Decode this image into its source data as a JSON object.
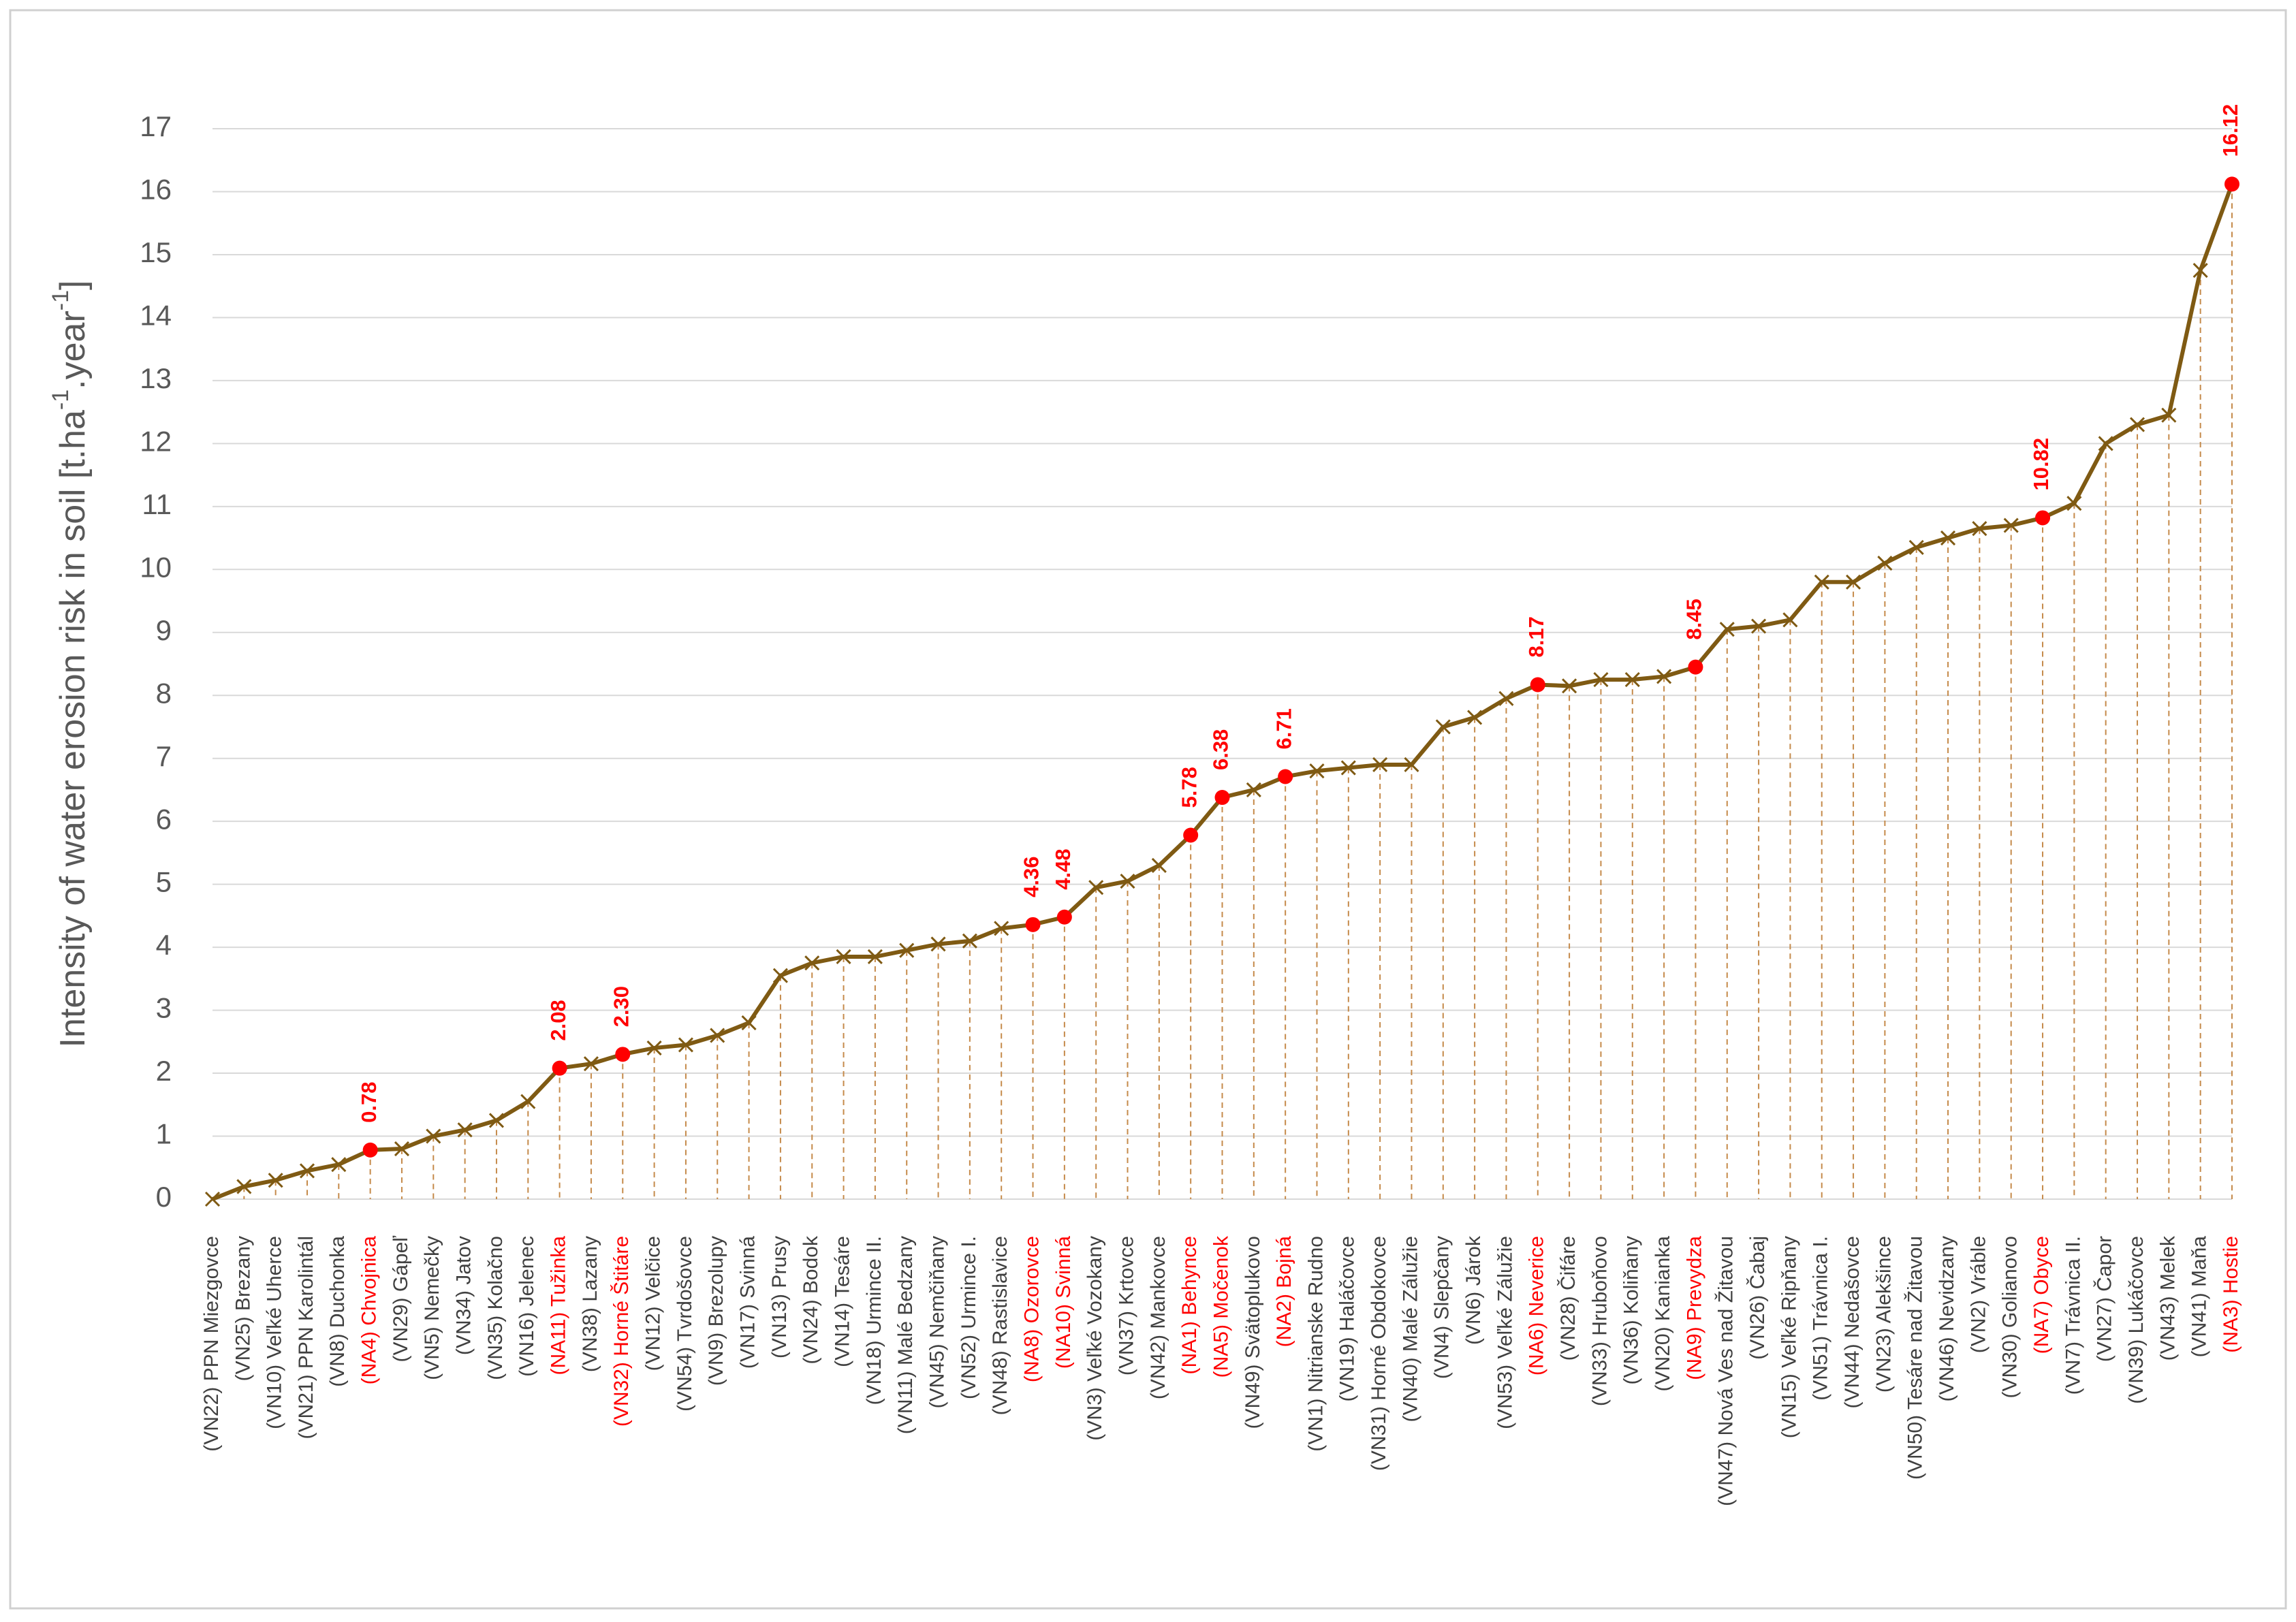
{
  "chart_data": {
    "type": "line",
    "ylabel_parts": [
      "Intensity of water erosion risk in soil [t.ha",
      "-1",
      ".year",
      "-1",
      "]"
    ],
    "categories": [
      "(VN22) PPN Miezgovce",
      "(VN25) Brezany",
      "(VN10) Veľké Uherce",
      "(VN21) PPN Karolintál",
      "(VN8) Duchonka",
      "(NA4) Chvojnica",
      "(VN29) Gápeľ",
      "(VN5) Nemečky",
      "(VN34) Jatov",
      "(VN35) Kolačno",
      "(VN16) Jelenec",
      "(NA11) Tužinka",
      "(VN38) Lazany",
      "(VN32) Horné Štitáre",
      "(VN12) Velčice",
      "(VN54) Tvrdošovce",
      "(VN9) Brezolupy",
      "(VN17) Svinná",
      "(VN13) Prusy",
      "(VN24) Bodok",
      "(VN14) Tesáre",
      "(VN18) Urmince II.",
      "(VN11) Malé Bedzany",
      "(VN45) Nemčiňany",
      "(VN52) Urmince I.",
      "(VN48) Rastislavice",
      "(NA8) Ozorovce",
      "(NA10) Svinná",
      "(VN3) Veľké Vozokany",
      "(VN37) Krtovce",
      "(VN42) Mankovce",
      "(NA1) Behynce",
      "(NA5) Močenok",
      "(VN49) Svätoplukovo",
      "(NA2) Bojná",
      "(VN1) Nitrianske Rudno",
      "(VN19) Haláčovce",
      "(VN31) Horné Obdokovce",
      "(VN40) Malé Zálužie",
      "(VN4) Slepčany",
      "(VN6) Járok",
      "(VN53) Veľké Zálužie",
      "(NA6) Neverice",
      "(VN28) Čifáre",
      "(VN33) Hruboňovo",
      "(VN36) Koliňany",
      "(VN20) Kanianka",
      "(NA9) Prevydza",
      "(VN47) Nová Ves nad Žitavou",
      "(VN26) Čabaj",
      "(VN15) Veľké Ripňany",
      "(VN51) Trávnica I.",
      "(VN44) Nedašovce",
      "(VN23) Alekšince",
      "(VN50) Tesáre nad Žitavou",
      "(VN46) Nevidzany",
      "(VN2) Vráble",
      "(VN30) Golianovo",
      "(NA7) Obyce",
      "(VN7) Trávnica II.",
      "(VN27) Čapor",
      "(VN39) Lukáčovce",
      "(VN43) Melek",
      "(VN41) Maňa",
      "(NA3) Hostie"
    ],
    "values": [
      0,
      0.2,
      0.3,
      0.45,
      0.55,
      0.78,
      0.8,
      1.0,
      1.1,
      1.25,
      1.55,
      2.08,
      2.15,
      2.3,
      2.4,
      2.45,
      2.6,
      2.8,
      3.55,
      3.75,
      3.85,
      3.85,
      3.95,
      4.05,
      4.1,
      4.3,
      4.36,
      4.48,
      4.95,
      5.05,
      5.3,
      5.78,
      6.38,
      6.5,
      6.71,
      6.8,
      6.85,
      6.9,
      6.9,
      7.5,
      7.65,
      7.95,
      8.17,
      8.15,
      8.25,
      8.25,
      8.3,
      8.45,
      9.05,
      9.1,
      9.2,
      9.8,
      9.8,
      10.1,
      10.35,
      10.5,
      10.65,
      10.7,
      10.82,
      11.05,
      12.0,
      12.3,
      12.45,
      14.75,
      16.12
    ],
    "value_labels": [
      null,
      null,
      null,
      null,
      null,
      "0.78",
      null,
      null,
      null,
      null,
      null,
      "2.08",
      null,
      "2.30",
      null,
      null,
      null,
      null,
      null,
      null,
      null,
      null,
      null,
      null,
      null,
      null,
      "4.36",
      "4.48",
      null,
      null,
      null,
      "5.78",
      "6.38",
      null,
      "6.71",
      null,
      null,
      null,
      null,
      null,
      null,
      null,
      "8.17",
      null,
      null,
      null,
      null,
      "8.45",
      null,
      null,
      null,
      null,
      null,
      null,
      null,
      null,
      null,
      null,
      "10.82",
      null,
      null,
      null,
      null,
      null,
      "16.12"
    ],
    "color": "#7f5a13",
    "highlight_color": "#ff0000",
    "ylim": [
      0,
      17
    ],
    "yticks": [
      0,
      1,
      2,
      3,
      4,
      5,
      6,
      7,
      8,
      9,
      10,
      11,
      12,
      13,
      14,
      15,
      16,
      17
    ],
    "grid": true
  }
}
